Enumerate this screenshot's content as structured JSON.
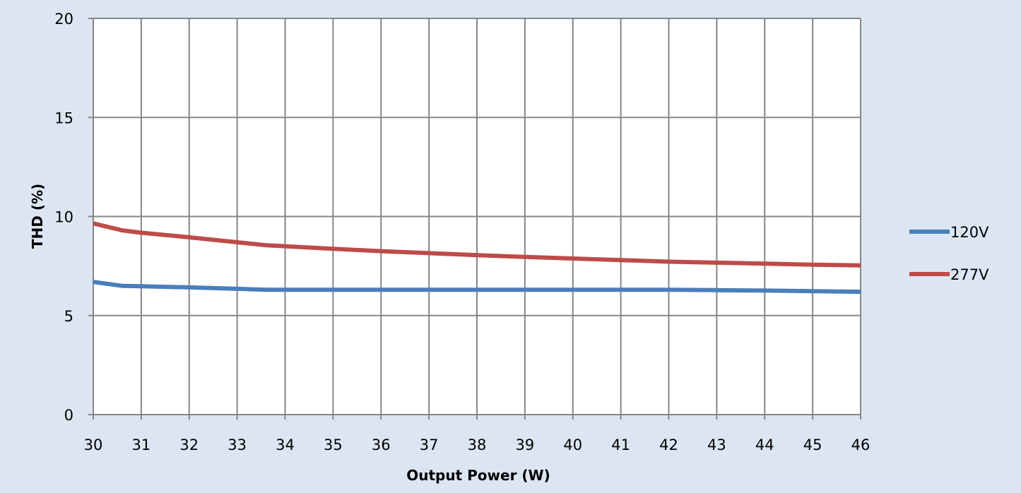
{
  "chart_data": {
    "type": "line",
    "xlabel": "Output Power (W)",
    "ylabel": "THD (%)",
    "xlim": [
      30,
      46
    ],
    "ylim": [
      0,
      20
    ],
    "x_ticks": [
      30,
      31,
      32,
      33,
      34,
      35,
      36,
      37,
      38,
      39,
      40,
      41,
      42,
      43,
      44,
      45,
      46
    ],
    "y_ticks": [
      0,
      5,
      10,
      15,
      20
    ],
    "grid": true,
    "legend_position": "right",
    "series": [
      {
        "name": "120V",
        "color": "#4a7ebb",
        "x": [
          30,
          30.6,
          31,
          32,
          33,
          33.6,
          34,
          35,
          36,
          37,
          38,
          39,
          40,
          41,
          42,
          43,
          44,
          45,
          46
        ],
        "y": [
          6.7,
          6.5,
          6.48,
          6.42,
          6.35,
          6.3,
          6.3,
          6.3,
          6.3,
          6.3,
          6.3,
          6.3,
          6.3,
          6.3,
          6.3,
          6.28,
          6.26,
          6.23,
          6.2
        ]
      },
      {
        "name": "277V",
        "color": "#be4b48",
        "x": [
          30,
          30.6,
          31,
          32,
          33,
          33.6,
          34,
          35,
          36,
          37,
          38,
          39,
          40,
          41,
          42,
          43,
          44,
          45,
          46
        ],
        "y": [
          9.65,
          9.3,
          9.18,
          8.95,
          8.7,
          8.55,
          8.5,
          8.37,
          8.25,
          8.15,
          8.05,
          7.96,
          7.88,
          7.8,
          7.72,
          7.67,
          7.62,
          7.57,
          7.53
        ]
      }
    ]
  }
}
